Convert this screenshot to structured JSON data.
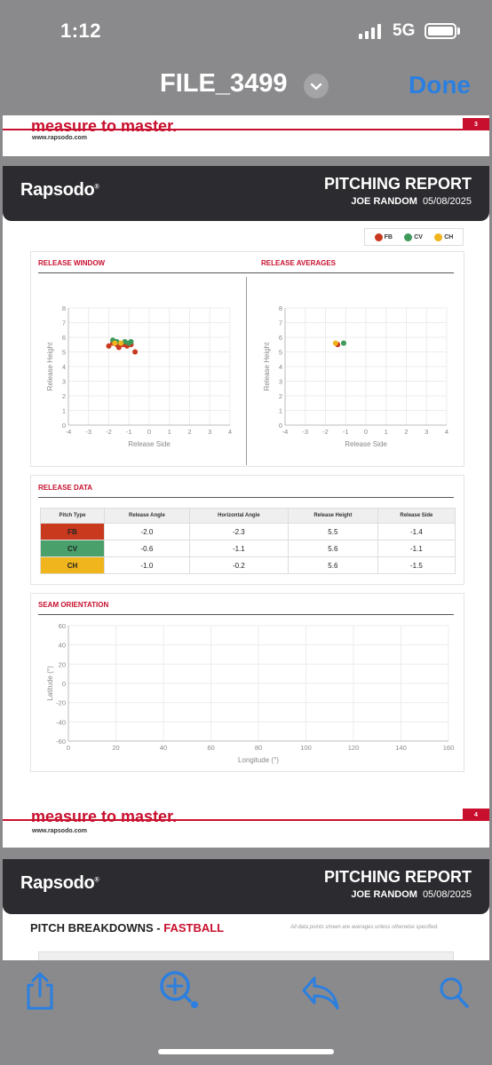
{
  "status_bar": {
    "time": "1:12",
    "network": "5G"
  },
  "nav": {
    "file_title": "FILE_3499",
    "done_label": "Done"
  },
  "page3": {
    "footer_brand": "measure to master.",
    "footer_url": "www.rapsodo.com",
    "page_number": "3"
  },
  "page4": {
    "logo": "Rapsodo",
    "report_title": "PITCHING REPORT",
    "player": "JOE RANDOM",
    "date": "05/08/2025",
    "legend": [
      {
        "label": "FB",
        "color": "#c8391e"
      },
      {
        "label": "CV",
        "color": "#3d9a5b"
      },
      {
        "label": "CH",
        "color": "#f0b41c"
      }
    ],
    "release_window_title": "RELEASE WINDOW",
    "release_averages_title": "RELEASE AVERAGES",
    "release_data_title": "RELEASE DATA",
    "seam_orientation_title": "SEAM ORIENTATION",
    "release_table": {
      "headers": [
        "Pitch Type",
        "Release Angle",
        "Horizontal Angle",
        "Release Height",
        "Release Side"
      ],
      "rows": [
        {
          "type": "FB",
          "color": "#c8391e",
          "cells": [
            "-2.0",
            "-2.3",
            "5.5",
            "-1.4"
          ]
        },
        {
          "type": "CV",
          "color": "#4aa06a",
          "cells": [
            "-0.6",
            "-1.1",
            "5.6",
            "-1.1"
          ]
        },
        {
          "type": "CH",
          "color": "#f0b41c",
          "cells": [
            "-1.0",
            "-0.2",
            "5.6",
            "-1.5"
          ]
        }
      ]
    },
    "footer_brand": "measure to master.",
    "footer_url": "www.rapsodo.com",
    "page_number": "4"
  },
  "page5": {
    "logo": "Rapsodo",
    "report_title": "PITCHING REPORT",
    "player": "JOE RANDOM",
    "date": "05/08/2025",
    "breakdown_prefix": "PITCH BREAKDOWNS - ",
    "breakdown_pitch": "FASTBALL",
    "note": "All data points shown are averages unless otherwise specified."
  },
  "chart_data": [
    {
      "type": "scatter",
      "title": "RELEASE WINDOW",
      "xlabel": "Release Side",
      "ylabel": "Release Height",
      "xlim": [
        -4,
        4
      ],
      "ylim": [
        0,
        8
      ],
      "xticks": [
        -4,
        -3,
        -2,
        -1,
        0,
        1,
        2,
        3,
        4
      ],
      "yticks": [
        0,
        1,
        2,
        3,
        4,
        5,
        6,
        7,
        8
      ],
      "series": [
        {
          "name": "FB",
          "color": "#c8391e",
          "points": [
            [
              -2.0,
              5.4
            ],
            [
              -1.8,
              5.6
            ],
            [
              -1.6,
              5.5
            ],
            [
              -1.5,
              5.3
            ],
            [
              -1.3,
              5.5
            ],
            [
              -1.1,
              5.4
            ],
            [
              -0.9,
              5.5
            ],
            [
              -0.7,
              5.0
            ],
            [
              -1.7,
              5.7
            ],
            [
              -1.2,
              5.6
            ]
          ]
        },
        {
          "name": "CV",
          "color": "#3d9a5b",
          "points": [
            [
              -1.8,
              5.8
            ],
            [
              -1.6,
              5.7
            ],
            [
              -1.2,
              5.7
            ],
            [
              -0.9,
              5.7
            ],
            [
              -1.0,
              5.6
            ]
          ]
        },
        {
          "name": "CH",
          "color": "#f0b41c",
          "points": [
            [
              -1.7,
              5.6
            ],
            [
              -1.4,
              5.6
            ]
          ]
        }
      ]
    },
    {
      "type": "scatter",
      "title": "RELEASE AVERAGES",
      "xlabel": "Release Side",
      "ylabel": "Release Height",
      "xlim": [
        -4,
        4
      ],
      "ylim": [
        0,
        8
      ],
      "xticks": [
        -4,
        -3,
        -2,
        -1,
        0,
        1,
        2,
        3,
        4
      ],
      "yticks": [
        0,
        1,
        2,
        3,
        4,
        5,
        6,
        7,
        8
      ],
      "series": [
        {
          "name": "FB",
          "color": "#c8391e",
          "points": [
            [
              -1.4,
              5.5
            ]
          ]
        },
        {
          "name": "CV",
          "color": "#3d9a5b",
          "points": [
            [
              -1.1,
              5.6
            ]
          ]
        },
        {
          "name": "CH",
          "color": "#f0b41c",
          "points": [
            [
              -1.5,
              5.6
            ]
          ]
        }
      ]
    },
    {
      "type": "scatter",
      "title": "SEAM ORIENTATION",
      "xlabel": "Longitude (°)",
      "ylabel": "Latitude (°)",
      "xlim": [
        0,
        160
      ],
      "ylim": [
        -60,
        60
      ],
      "xticks": [
        0,
        20,
        40,
        60,
        80,
        100,
        120,
        140,
        160
      ],
      "yticks": [
        60,
        40,
        20,
        0,
        -20,
        -40,
        -60
      ],
      "series": []
    }
  ]
}
